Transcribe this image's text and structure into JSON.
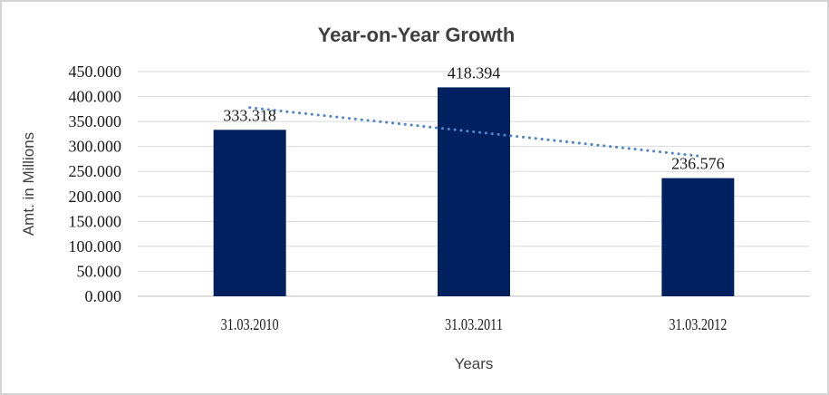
{
  "chart": {
    "title": "Year-on-Year Growth",
    "y_axis_title": "Amt. in Millions",
    "x_axis_title": "Years"
  },
  "chart_data": {
    "type": "bar",
    "title": "Year-on-Year Growth",
    "xlabel": "Years",
    "ylabel": "Amt. in Millions",
    "categories": [
      "31.03.2010",
      "31.03.2011",
      "31.03.2012"
    ],
    "values": [
      333.318,
      418.394,
      236.576
    ],
    "data_labels": [
      "333.318",
      "418.394",
      "236.576"
    ],
    "ylim": [
      0,
      450
    ],
    "ytick_step": 50,
    "ytick_labels": [
      "0.000",
      "50.000",
      "100.000",
      "150.000",
      "200.000",
      "250.000",
      "300.000",
      "350.000",
      "400.000",
      "450.000"
    ],
    "grid": "horizontal",
    "legend": "none",
    "trendline": {
      "type": "linear",
      "style": "dotted"
    }
  },
  "colors": {
    "bar": "#002060",
    "trendline": "#4F86C8",
    "gridline": "#D9D9D9",
    "axis_line": "#BFBFBF",
    "title_text": "#3F3F3F",
    "label_text": "#1A1A1A",
    "frame_border": "#D4D4D4"
  }
}
